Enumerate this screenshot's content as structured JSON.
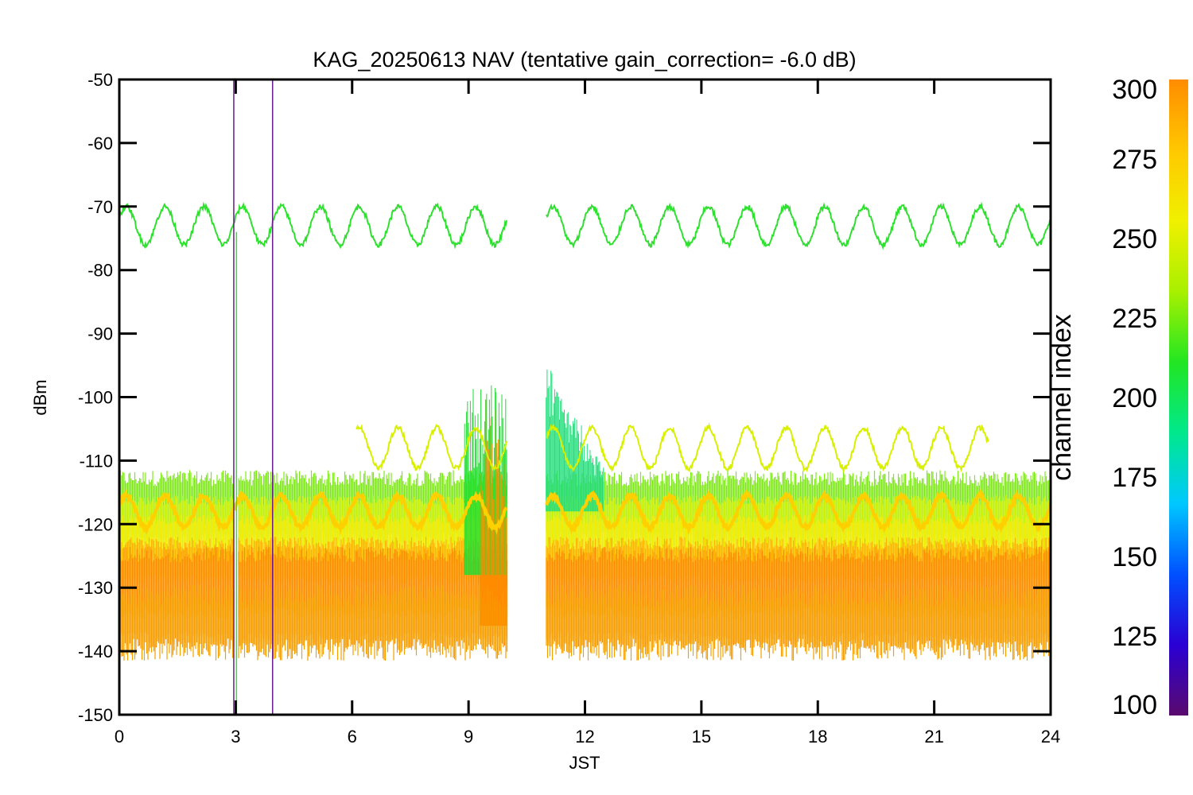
{
  "chart_data": {
    "type": "line",
    "title": "KAG_20250613 NAV (tentative gain_correction= -6.0 dB)",
    "xlabel": "JST",
    "ylabel": "dBm",
    "xlim": [
      0,
      24
    ],
    "ylim": [
      -150,
      -50
    ],
    "xticks": [
      "0",
      "3",
      "6",
      "9",
      "12",
      "15",
      "18",
      "21",
      "24"
    ],
    "yticks": [
      "-50",
      "-60",
      "-70",
      "-80",
      "-90",
      "-100",
      "-110",
      "-120",
      "-130",
      "-140",
      "-150"
    ],
    "grid": false,
    "data_gap_jst": [
      10.0,
      11.0
    ],
    "colorbar": {
      "label": "channel index",
      "range": [
        100,
        300
      ],
      "ticks": [
        "300",
        "275",
        "250",
        "225",
        "200",
        "175",
        "150",
        "125",
        "100"
      ],
      "colormap": [
        "#5a0a6e",
        "#2a00d4",
        "#0050ff",
        "#00c8ff",
        "#00e88c",
        "#22e622",
        "#a8f000",
        "#f0f000",
        "#ffc800",
        "#ff8c00"
      ]
    },
    "series": [
      {
        "channel_index": 235,
        "description_color": "#30e030",
        "x_range": [
          0,
          24
        ],
        "baseline": -73,
        "amplitude": 3,
        "period_hours": 1.0
      },
      {
        "channel_index": 262,
        "description_color": "#d8f000",
        "x_range": [
          6.1,
          22.4
        ],
        "baseline": -108,
        "amplitude": 3.2,
        "period_hours": 1.0
      },
      {
        "channel_index": 270,
        "description_color": "#ffd000",
        "x_range": [
          0,
          24
        ],
        "baseline": -118,
        "amplitude": 2.5,
        "period_hours": 1.0
      },
      {
        "channel_index": 100,
        "description_color": "#6a1a8a",
        "x_values": [
          2.95,
          3.95
        ],
        "y_range": [
          -150,
          -50
        ]
      }
    ],
    "noise_band_dbm": [
      -140,
      -114
    ]
  }
}
